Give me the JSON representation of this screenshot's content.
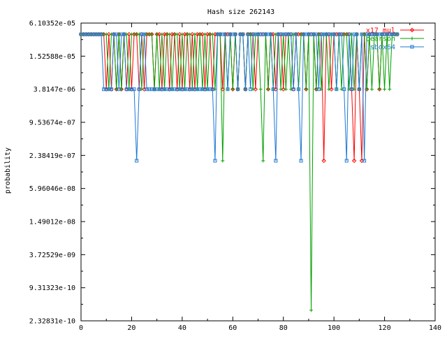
{
  "chart_data": {
    "type": "line",
    "title": "Hash size 262143",
    "xlabel": "",
    "ylabel": "probability",
    "xlim": [
      0,
      140
    ],
    "y_scale": "log2",
    "ylim": [
      2.32831e-10,
      6.10352e-05
    ],
    "xticks": [
      "0",
      "20",
      "40",
      "60",
      "80",
      "100",
      "120",
      "140"
    ],
    "yticks": [
      "6.10352e-05",
      "1.52588e-05",
      "3.8147e-06",
      "9.53674e-07",
      "2.38419e-07",
      "5.96046e-08",
      "1.49012e-08",
      "3.72529e-09",
      "9.31323e-10",
      "2.32831e-10"
    ],
    "ytick_values": [
      6.10352e-05,
      1.52588e-05,
      3.8147e-06,
      9.53674e-07,
      2.38419e-07,
      5.96046e-08,
      1.49012e-08,
      3.72529e-09,
      9.31323e-10,
      2.32831e-10
    ],
    "grid": false,
    "legend_position": "top-right",
    "series": [
      {
        "name": "x17 mul",
        "color": "#ff0000",
        "marker": "diamond",
        "x": [
          0,
          1,
          2,
          3,
          4,
          5,
          6,
          7,
          8,
          9,
          10,
          11,
          12,
          13,
          14,
          15,
          16,
          17,
          18,
          19,
          20,
          21,
          22,
          23,
          24,
          25,
          26,
          27,
          28,
          29,
          30,
          31,
          32,
          33,
          34,
          35,
          36,
          37,
          38,
          39,
          40,
          41,
          42,
          43,
          44,
          45,
          46,
          47,
          48,
          49,
          50,
          51,
          52,
          53,
          54,
          55,
          56,
          57,
          58,
          59,
          60,
          61,
          62,
          63,
          64,
          65,
          66,
          67,
          68,
          69,
          70,
          71,
          72,
          73,
          74,
          75,
          76,
          77,
          78,
          79,
          80,
          81,
          82,
          83,
          84,
          85,
          86,
          87,
          88,
          89,
          90,
          91,
          92,
          93,
          94,
          95,
          96,
          97,
          98,
          99,
          100,
          101,
          102,
          103,
          104,
          105,
          106,
          107,
          108,
          109,
          110,
          111,
          112,
          113,
          114,
          115,
          116,
          117,
          118,
          119,
          120,
          121,
          122,
          123,
          124,
          125
        ],
        "y": [
          3.8147e-05,
          3.8147e-05,
          3.8147e-05,
          3.8147e-05,
          3.8147e-05,
          3.8147e-05,
          3.8147e-05,
          3.8147e-05,
          3.8147e-05,
          3.8147e-05,
          3.8147e-06,
          3.8147e-05,
          3.8147e-06,
          3.8147e-05,
          3.8147e-06,
          3.8147e-05,
          3.8147e-06,
          3.8147e-05,
          3.8147e-06,
          3.8147e-05,
          3.8147e-06,
          3.8147e-05,
          3.8147e-05,
          3.8147e-06,
          3.8147e-05,
          3.8147e-06,
          3.8147e-05,
          3.8147e-05,
          3.8147e-05,
          3.8147e-06,
          3.8147e-05,
          3.8147e-05,
          3.8147e-06,
          3.8147e-05,
          3.8147e-05,
          3.8147e-06,
          3.8147e-05,
          3.8147e-05,
          3.8147e-06,
          3.8147e-05,
          3.8147e-06,
          3.8147e-05,
          3.8147e-05,
          3.8147e-06,
          3.8147e-05,
          3.8147e-06,
          3.8147e-05,
          3.8147e-05,
          3.8147e-05,
          3.8147e-06,
          3.8147e-05,
          3.8147e-05,
          3.8147e-06,
          3.8147e-05,
          3.8147e-05,
          3.8147e-05,
          3.8147e-06,
          3.8147e-05,
          3.8147e-05,
          3.8147e-05,
          3.8147e-06,
          3.8147e-05,
          3.8147e-06,
          3.8147e-05,
          3.8147e-05,
          3.8147e-06,
          3.8147e-05,
          3.8147e-05,
          3.8147e-05,
          3.8147e-06,
          3.8147e-05,
          3.8147e-05,
          3.8147e-05,
          3.8147e-05,
          3.8147e-06,
          3.8147e-05,
          3.8147e-05,
          3.8147e-06,
          3.8147e-05,
          3.8147e-05,
          3.8147e-06,
          3.8147e-05,
          3.8147e-05,
          3.8147e-05,
          3.8147e-06,
          3.8147e-05,
          3.8147e-05,
          3.8147e-05,
          3.8147e-05,
          3.8147e-06,
          3.8147e-05,
          3.8147e-05,
          3.8147e-05,
          3.8147e-06,
          3.8147e-05,
          3.8147e-05,
          1.90735e-07,
          3.8147e-05,
          3.8147e-05,
          3.8147e-06,
          3.8147e-05,
          3.8147e-05,
          3.8147e-05,
          3.8147e-05,
          3.8147e-05,
          3.8147e-05,
          3.8147e-05,
          3.8147e-06,
          1.90735e-07,
          3.8147e-05,
          3.8147e-06,
          1.90735e-07,
          3.8147e-05,
          3.8147e-06,
          3.8147e-05,
          3.8147e-05,
          3.8147e-05,
          3.8147e-05,
          3.8147e-06,
          3.8147e-05,
          3.8147e-05,
          3.8147e-05,
          3.8147e-05,
          3.8147e-05,
          3.8147e-05,
          3.8147e-05
        ]
      },
      {
        "name": "pearson",
        "color": "#00a000",
        "marker": "plus",
        "x": [
          0,
          1,
          2,
          3,
          4,
          5,
          6,
          7,
          8,
          9,
          10,
          11,
          12,
          13,
          14,
          15,
          16,
          17,
          18,
          19,
          20,
          21,
          22,
          23,
          24,
          25,
          26,
          27,
          28,
          29,
          30,
          31,
          32,
          33,
          34,
          35,
          36,
          37,
          38,
          39,
          40,
          41,
          42,
          43,
          44,
          45,
          46,
          47,
          48,
          49,
          50,
          51,
          52,
          53,
          54,
          55,
          56,
          57,
          58,
          59,
          60,
          61,
          62,
          63,
          64,
          65,
          66,
          67,
          68,
          69,
          70,
          71,
          72,
          73,
          74,
          75,
          76,
          77,
          78,
          79,
          80,
          81,
          82,
          83,
          84,
          85,
          86,
          87,
          88,
          89,
          90,
          91,
          92,
          93,
          94,
          95,
          96,
          97,
          98,
          99,
          100,
          101,
          102,
          103,
          104,
          105,
          106,
          107,
          108,
          109,
          110,
          111,
          112,
          113,
          114,
          115,
          116,
          117,
          118,
          119,
          120,
          121,
          122,
          123,
          124,
          125
        ],
        "y": [
          3.8147e-05,
          3.8147e-05,
          3.8147e-05,
          3.8147e-05,
          3.8147e-05,
          3.8147e-05,
          3.8147e-05,
          3.8147e-05,
          3.8147e-05,
          3.8147e-05,
          3.8147e-05,
          3.8147e-06,
          3.8147e-05,
          3.8147e-05,
          3.8147e-06,
          3.8147e-05,
          3.8147e-06,
          3.8147e-05,
          3.8147e-05,
          3.8147e-06,
          3.8147e-05,
          3.8147e-05,
          3.8147e-05,
          3.8147e-05,
          3.8147e-06,
          3.8147e-05,
          3.8147e-05,
          3.8147e-05,
          3.8147e-05,
          3.8147e-06,
          3.8147e-05,
          3.8147e-06,
          3.8147e-05,
          3.8147e-06,
          3.8147e-05,
          3.8147e-05,
          3.8147e-06,
          3.8147e-05,
          3.8147e-05,
          3.8147e-06,
          3.8147e-05,
          3.8147e-06,
          3.8147e-05,
          3.8147e-05,
          3.8147e-06,
          3.8147e-05,
          3.8147e-06,
          3.8147e-05,
          3.8147e-06,
          3.8147e-05,
          3.8147e-06,
          3.8147e-05,
          3.8147e-05,
          3.8147e-06,
          3.8147e-05,
          3.8147e-05,
          1.90735e-07,
          3.8147e-05,
          3.8147e-06,
          3.8147e-05,
          3.8147e-06,
          3.8147e-05,
          3.8147e-06,
          3.8147e-05,
          3.8147e-05,
          3.8147e-06,
          3.8147e-05,
          3.8147e-05,
          3.8147e-06,
          3.8147e-05,
          3.8147e-05,
          3.8147e-06,
          1.90735e-07,
          3.8147e-05,
          3.8147e-06,
          3.8147e-05,
          3.8147e-06,
          3.8147e-05,
          3.8147e-05,
          3.8147e-06,
          3.8147e-05,
          3.8147e-06,
          3.8147e-05,
          3.8147e-06,
          3.8147e-05,
          3.8147e-05,
          3.8147e-06,
          3.8147e-05,
          3.8147e-05,
          3.8147e-06,
          3.8147e-05,
          3.63798e-10,
          3.8147e-05,
          3.8147e-06,
          3.8147e-05,
          3.8147e-06,
          3.8147e-05,
          3.8147e-05,
          3.8147e-06,
          3.8147e-05,
          3.8147e-05,
          3.8147e-06,
          3.8147e-05,
          3.8147e-06,
          3.8147e-05,
          3.8147e-05,
          3.8147e-06,
          3.8147e-05,
          3.8147e-06,
          3.8147e-05,
          3.8147e-06,
          3.8147e-05,
          3.8147e-05,
          3.8147e-06,
          3.8147e-05,
          3.8147e-06,
          3.8147e-05,
          3.8147e-05,
          3.8147e-06,
          3.8147e-05,
          3.8147e-06,
          3.8147e-05,
          3.8147e-06,
          3.8147e-05,
          3.8147e-05,
          3.8147e-05
        ]
      },
      {
        "name": "sbox64",
        "color": "#1e78d2",
        "marker": "square",
        "x": [
          0,
          1,
          2,
          3,
          4,
          5,
          6,
          7,
          8,
          9,
          10,
          11,
          12,
          13,
          14,
          15,
          16,
          17,
          18,
          19,
          20,
          21,
          22,
          23,
          24,
          25,
          26,
          27,
          28,
          29,
          30,
          31,
          32,
          33,
          34,
          35,
          36,
          37,
          38,
          39,
          40,
          41,
          42,
          43,
          44,
          45,
          46,
          47,
          48,
          49,
          50,
          51,
          52,
          53,
          54,
          55,
          56,
          57,
          58,
          59,
          60,
          61,
          62,
          63,
          64,
          65,
          66,
          67,
          68,
          69,
          70,
          71,
          72,
          73,
          74,
          75,
          76,
          77,
          78,
          79,
          80,
          81,
          82,
          83,
          84,
          85,
          86,
          87,
          88,
          89,
          90,
          91,
          92,
          93,
          94,
          95,
          96,
          97,
          98,
          99,
          100,
          101,
          102,
          103,
          104,
          105,
          106,
          107,
          108,
          109,
          110,
          111,
          112,
          113,
          114,
          115,
          116,
          117,
          118,
          119,
          120,
          121,
          122,
          123,
          124,
          125
        ],
        "y": [
          3.8147e-05,
          3.8147e-05,
          3.8147e-05,
          3.8147e-05,
          3.8147e-05,
          3.8147e-05,
          3.8147e-05,
          3.8147e-05,
          3.8147e-05,
          3.8147e-06,
          3.8147e-06,
          3.8147e-06,
          3.8147e-06,
          3.8147e-05,
          3.8147e-05,
          3.8147e-06,
          3.8147e-05,
          3.8147e-05,
          3.8147e-06,
          3.8147e-06,
          3.8147e-06,
          3.8147e-06,
          1.90735e-07,
          3.8147e-06,
          3.8147e-05,
          3.8147e-05,
          3.8147e-06,
          3.8147e-06,
          3.8147e-06,
          3.8147e-06,
          3.8147e-06,
          3.8147e-06,
          3.8147e-06,
          3.8147e-06,
          3.8147e-06,
          3.8147e-06,
          3.8147e-06,
          3.8147e-06,
          3.8147e-06,
          3.8147e-06,
          3.8147e-06,
          3.8147e-06,
          3.8147e-06,
          3.8147e-06,
          3.8147e-06,
          3.8147e-06,
          3.8147e-06,
          3.8147e-06,
          3.8147e-06,
          3.8147e-06,
          3.8147e-06,
          3.8147e-06,
          3.8147e-06,
          1.90735e-07,
          3.8147e-05,
          3.8147e-05,
          3.8147e-05,
          3.8147e-05,
          3.8147e-06,
          3.8147e-05,
          3.8147e-05,
          3.8147e-05,
          3.8147e-06,
          3.8147e-05,
          3.8147e-05,
          3.8147e-06,
          3.8147e-05,
          3.8147e-06,
          3.8147e-05,
          3.8147e-05,
          3.8147e-05,
          3.8147e-05,
          3.8147e-05,
          3.8147e-05,
          3.8147e-05,
          3.8147e-05,
          3.8147e-06,
          1.90735e-07,
          3.8147e-05,
          3.8147e-05,
          3.8147e-05,
          3.8147e-05,
          3.8147e-05,
          3.8147e-05,
          3.8147e-06,
          3.8147e-05,
          3.8147e-06,
          1.90735e-07,
          3.8147e-05,
          3.8147e-05,
          3.8147e-05,
          3.8147e-05,
          3.8147e-05,
          3.8147e-05,
          3.8147e-06,
          3.8147e-05,
          3.8147e-05,
          3.8147e-05,
          3.8147e-05,
          3.8147e-05,
          3.8147e-05,
          3.8147e-06,
          3.8147e-05,
          3.8147e-05,
          3.8147e-06,
          1.90735e-07,
          3.8147e-05,
          3.8147e-06,
          3.8147e-05,
          3.8147e-05,
          3.8147e-06,
          3.8147e-05,
          1.90735e-07,
          3.8147e-05,
          3.8147e-05,
          3.8147e-05,
          3.8147e-05,
          3.8147e-05,
          3.8147e-05,
          3.8147e-05,
          3.8147e-05,
          3.8147e-05,
          3.8147e-05,
          3.8147e-05,
          3.8147e-05,
          3.8147e-05
        ]
      }
    ]
  }
}
